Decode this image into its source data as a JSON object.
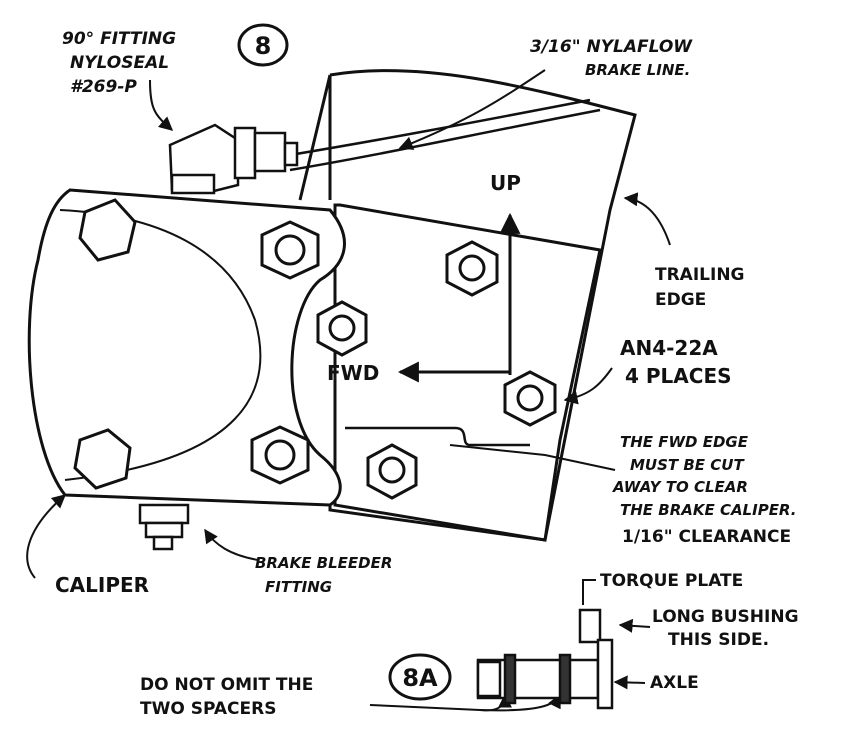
{
  "figure_number": "8",
  "detail_number": "8A",
  "labels": {
    "fitting_line1": "90° FITTING",
    "fitting_line2": "NYLOSEAL",
    "fitting_line3": "#269-P",
    "brake_line_line1": "3/16\" NYLAFLOW",
    "brake_line_line2": "BRAKE LINE.",
    "up": "UP",
    "trailing_edge_line1": "TRAILING",
    "trailing_edge_line2": "EDGE",
    "bolt_line1": "AN4-22A",
    "bolt_line2": "4 PLACES",
    "fwd": "FWD",
    "note_line1": "THE FWD EDGE",
    "note_line2": "MUST BE CUT",
    "note_line3": "AWAY TO CLEAR",
    "note_line4": "THE BRAKE CALIPER.",
    "note_line5": "1/16\" CLEARANCE",
    "caliper": "CALIPER",
    "bleeder_line1": "BRAKE BLEEDER",
    "bleeder_line2": "FITTING",
    "torque_plate": "TORQUE PLATE",
    "bushing_line1": "LONG BUSHING",
    "bushing_line2": "THIS SIDE.",
    "axle": "AXLE",
    "spacers_line1": "DO NOT OMIT THE",
    "spacers_line2": "TWO SPACERS"
  },
  "colors": {
    "ink": "#111111",
    "paper": "#ffffff"
  }
}
